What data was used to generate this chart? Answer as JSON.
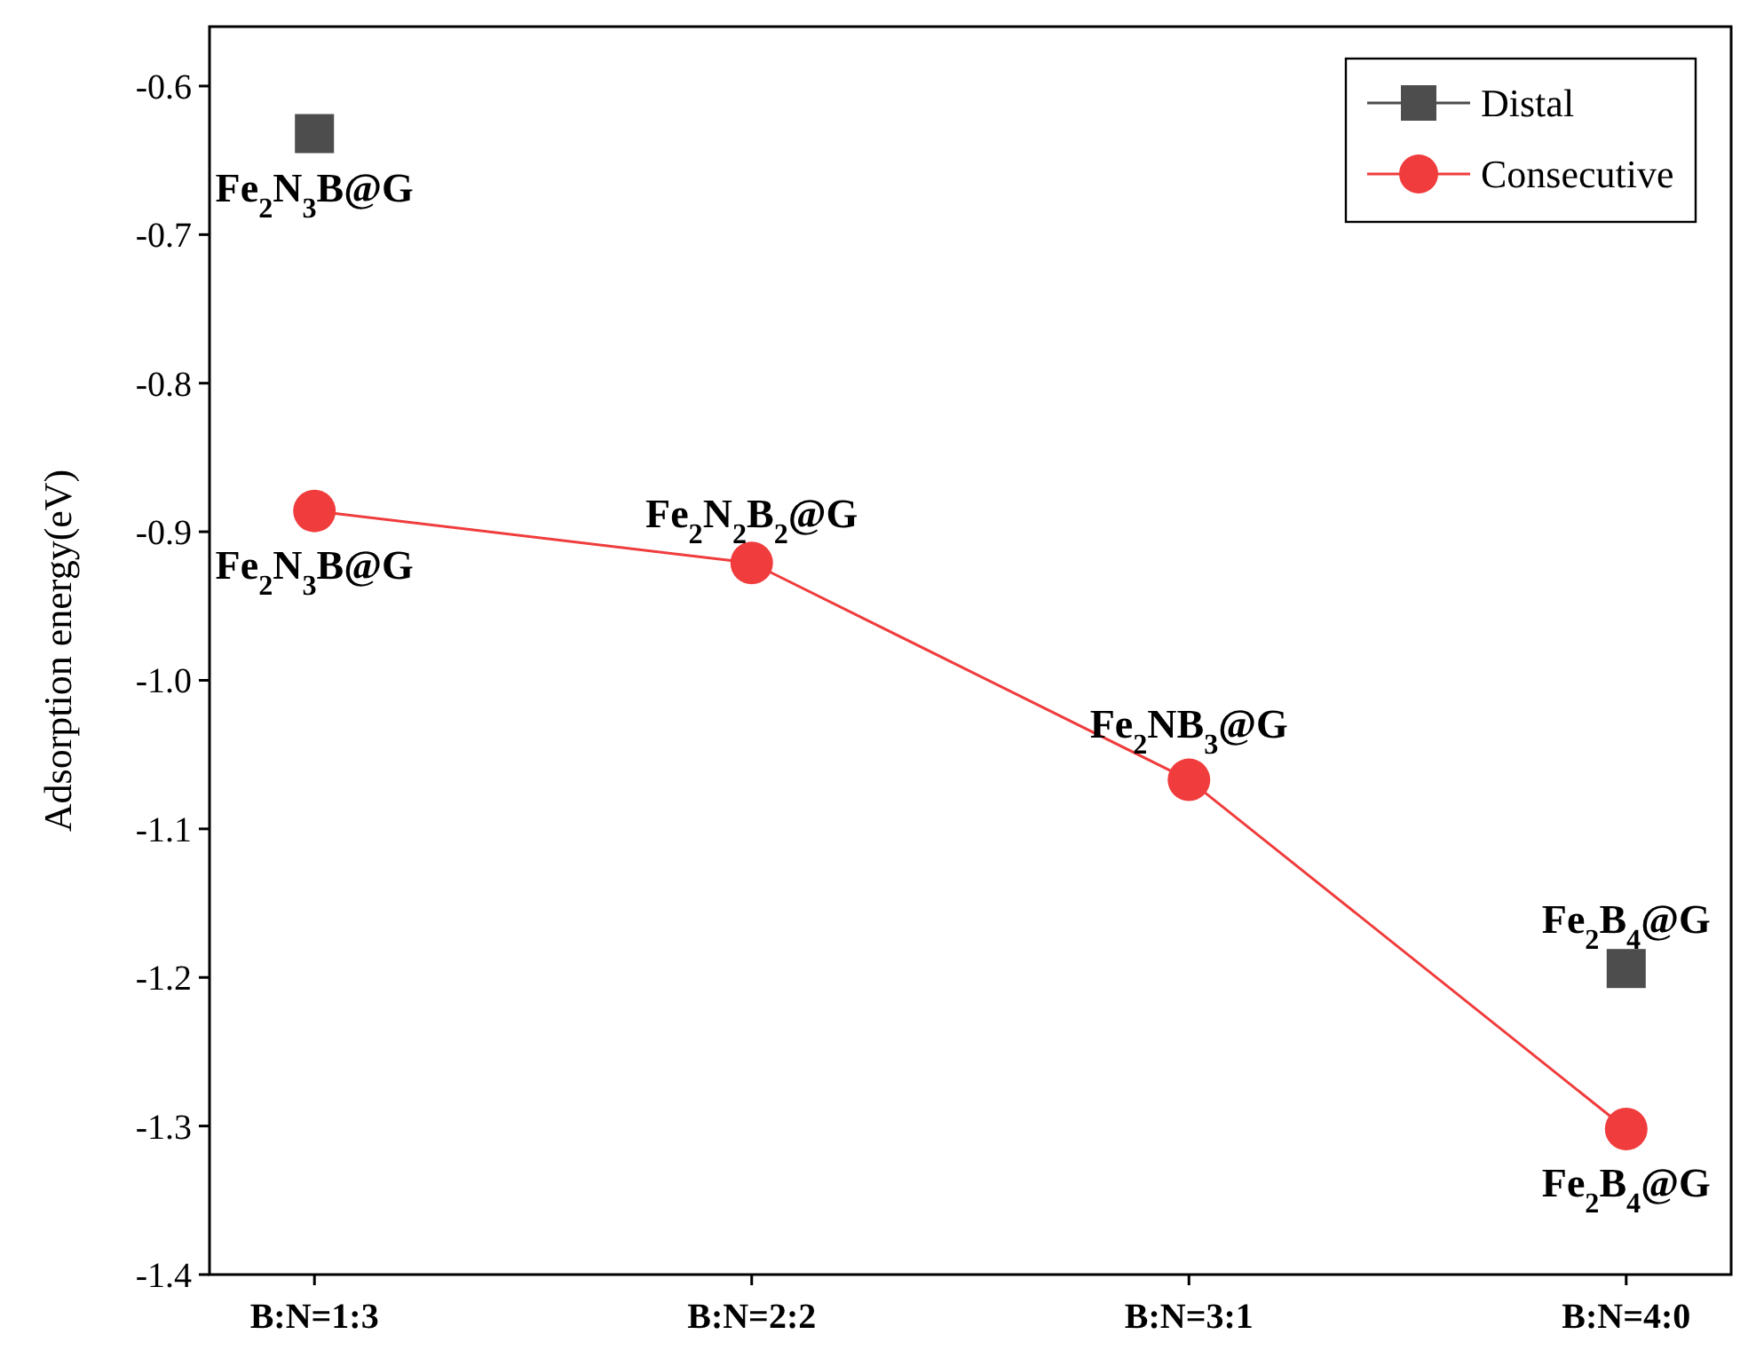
{
  "chart_data": {
    "type": "line",
    "ylabel": "Adsorption energy(eV)",
    "categories": [
      "B:N=1:3",
      "B:N=2:2",
      "B:N=3:1",
      "B:N=4:0"
    ],
    "series": [
      {
        "name": "Distal",
        "type": "scatter",
        "marker": "square",
        "color": "#4d4d4d",
        "values": [
          -0.632,
          null,
          null,
          -1.194
        ]
      },
      {
        "name": "Consecutive",
        "marker": "circle",
        "color": "#f03c3c",
        "values": [
          -0.886,
          -0.921,
          -1.067,
          -1.302
        ]
      }
    ],
    "ylim": [
      -1.4,
      -0.56
    ],
    "yticks": [
      {
        "value": -1.4,
        "label": "-1.4"
      },
      {
        "value": -1.3,
        "label": "-1.3"
      },
      {
        "value": -1.2,
        "label": "-1.2"
      },
      {
        "value": -1.1,
        "label": "-1.1"
      },
      {
        "value": -1.0,
        "label": "-1.0"
      },
      {
        "value": -0.9,
        "label": "-0.9"
      },
      {
        "value": -0.8,
        "label": "-0.8"
      },
      {
        "value": -0.7,
        "label": "-0.7"
      },
      {
        "value": -0.6,
        "label": "-0.6"
      }
    ],
    "legend": "top right",
    "annotations": [
      {
        "text": "Fe$_{2}$N$_{3}$B@G",
        "x": "B:N=1:3",
        "y": -0.632
      },
      {
        "text": "Fe$_{2}$N$_{3}$B@G",
        "x": "B:N=1:3",
        "y": -0.886
      },
      {
        "text": "Fe$_{2}$N$_{2}$B$_{2}$@G",
        "x": "B:N=2:2",
        "y": -0.921
      },
      {
        "text": "Fe$_{2}$NB$_{3}$@G",
        "x": "B:N=3:1",
        "y": -1.067
      },
      {
        "text": "Fe$_{2}$B$_{4}$@G",
        "x": "B:N=4:0",
        "y": -1.194
      },
      {
        "text": "Fe$_{2}$B$_{4}$@G",
        "x": "B:N=4:0",
        "y": -1.302
      }
    ]
  }
}
